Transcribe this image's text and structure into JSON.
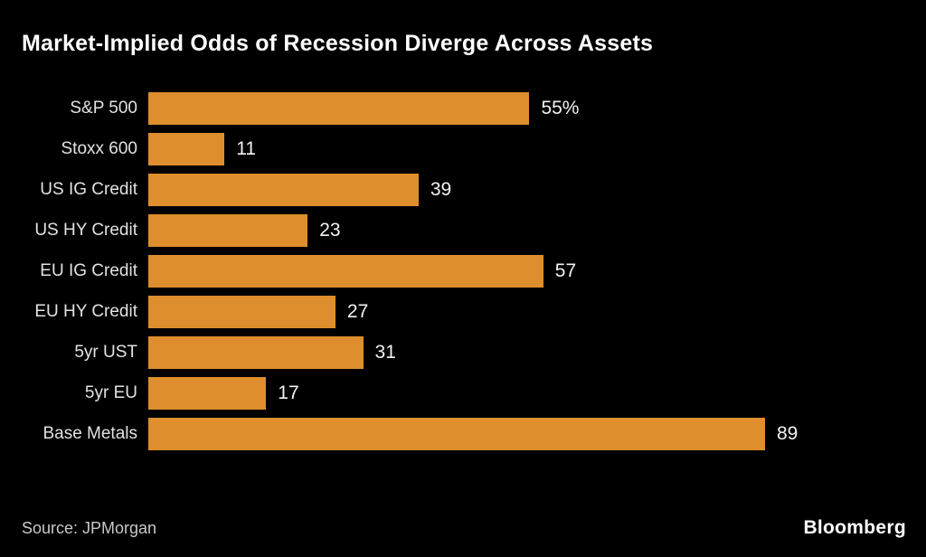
{
  "page": {
    "background_color": "#000000",
    "title": "Market-Implied Odds of Recession Diverge Across Assets",
    "source_note": "Source: JPMorgan",
    "brand": "Bloomberg"
  },
  "chart_data": {
    "type": "bar",
    "orientation": "horizontal",
    "title": "Market-Implied Odds of Recession Diverge Across Assets",
    "categories": [
      "S&P 500",
      "Stoxx 600",
      "US IG Credit",
      "US HY Credit",
      "EU IG Credit",
      "EU HY Credit",
      "5yr UST",
      "5yr EU",
      "Base Metals"
    ],
    "values": [
      55,
      11,
      39,
      23,
      57,
      27,
      31,
      17,
      89
    ],
    "value_labels": [
      "55%",
      "11",
      "39",
      "23",
      "57",
      "27",
      "31",
      "17",
      "89"
    ],
    "unit": "%",
    "xlim": [
      0,
      89
    ],
    "xlabel": "",
    "ylabel": "",
    "grid": false,
    "legend": "none",
    "bar_color": "#de8e2c",
    "label_color": "#e2e2e2",
    "value_color": "#f2f2f2"
  }
}
